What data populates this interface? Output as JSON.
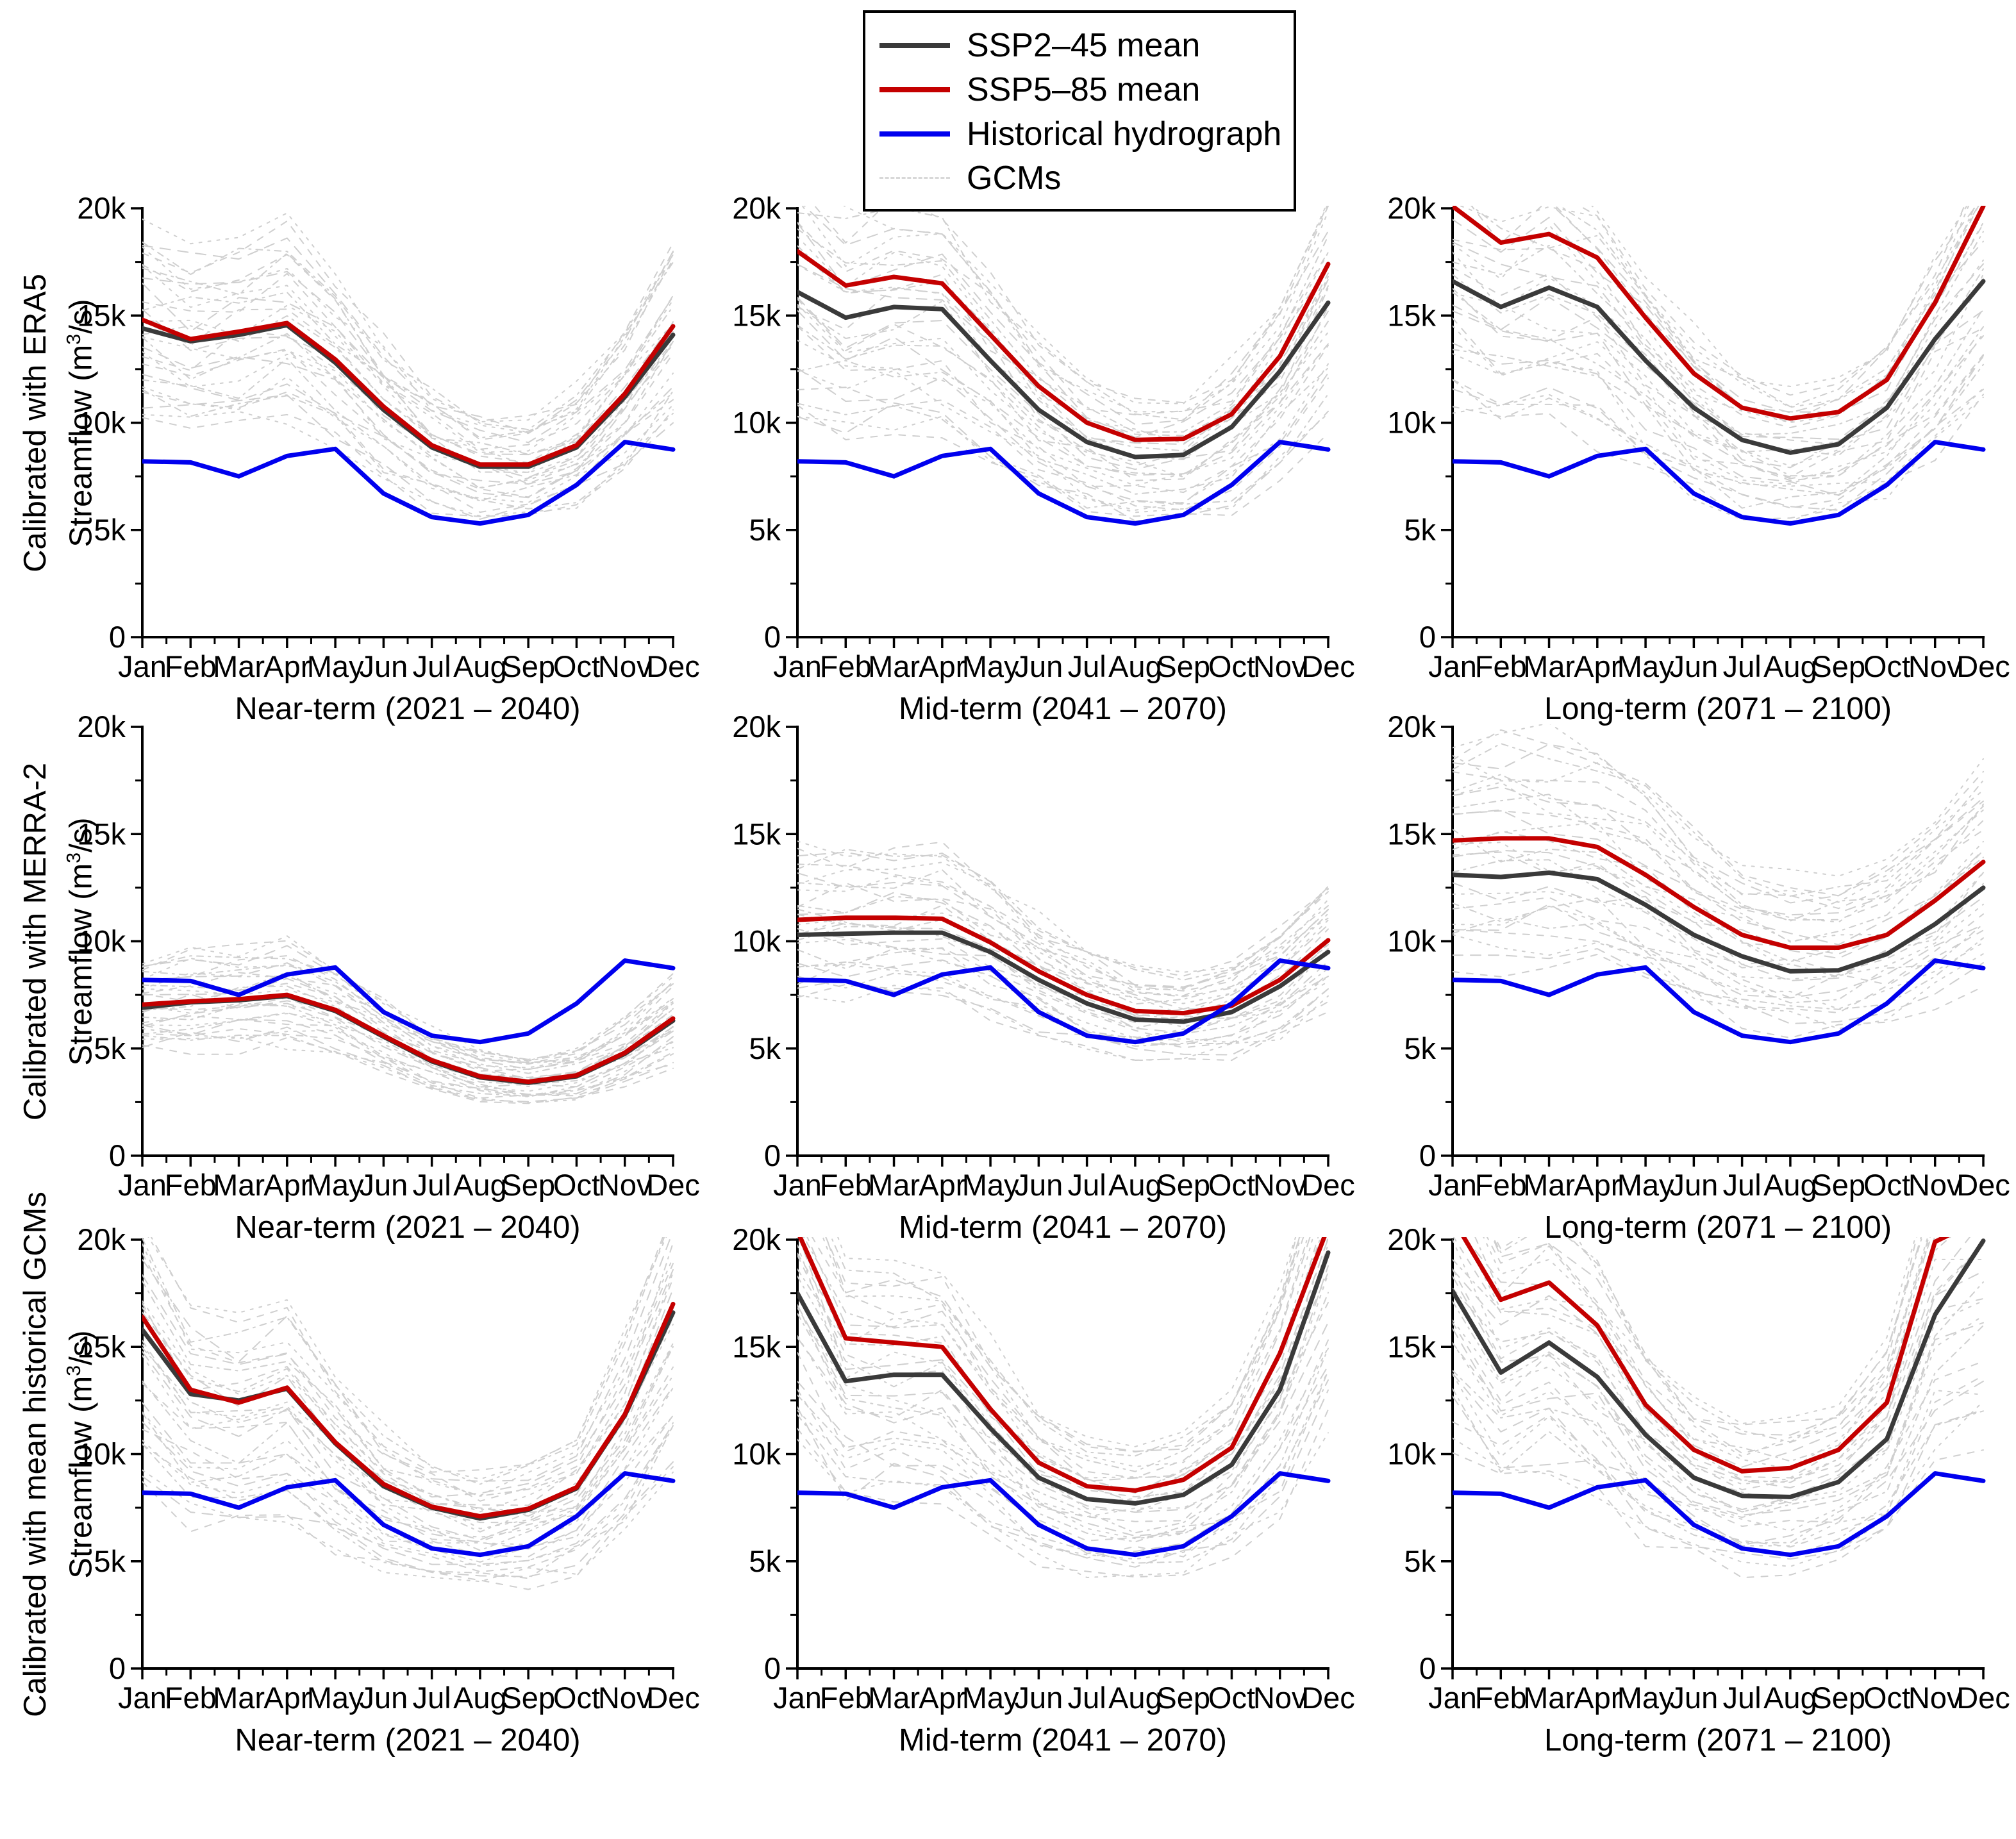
{
  "legend": {
    "items": [
      {
        "label": "SSP2–45 mean",
        "color": "#3a3a3a",
        "dash": "solid"
      },
      {
        "label": "SSP5–85 mean",
        "color": "#c40000",
        "dash": "solid"
      },
      {
        "label": "Historical hydrograph",
        "color": "#0000ee",
        "dash": "solid"
      },
      {
        "label": "GCMs",
        "color": "#d8d8d8",
        "dash": "dashed"
      }
    ]
  },
  "axes": {
    "months": [
      "Jan",
      "Feb",
      "Mar",
      "Apr",
      "May",
      "Jun",
      "Jul",
      "Aug",
      "Sep",
      "Oct",
      "Nov",
      "Dec"
    ],
    "ytick_labels": [
      "0",
      "5k",
      "10k",
      "15k",
      "20k"
    ],
    "ytick_values": [
      0,
      5000,
      10000,
      15000,
      20000
    ],
    "yminor_values": [
      2500,
      7500,
      12500,
      17500
    ],
    "ylim": [
      0,
      20000
    ],
    "ylabel_line2": "Streamflow (m³/s)"
  },
  "row_labels": [
    "Calibrated with ERA5",
    "Calibrated with MERRA-2",
    "Calibrated with mean historical GCMs"
  ],
  "col_titles": [
    "Near-term (2021 – 2040)",
    "Mid-term (2041 – 2070)",
    "Long-term (2071 – 2100)"
  ],
  "colors": {
    "ssp245": "#3a3a3a",
    "ssp585": "#c40000",
    "historical": "#0000ee",
    "gcm": "#cfcfcf",
    "axis": "#000000"
  },
  "chart_data": [
    {
      "type": "line",
      "row": 0,
      "col": 0,
      "row_label": "Calibrated with ERA5",
      "title": "Near-term (2021 – 2040)",
      "ylim": [
        0,
        20000
      ],
      "series": [
        {
          "name": "SSP2–45 mean",
          "values": [
            14400,
            13800,
            14100,
            14550,
            12800,
            10600,
            8850,
            7950,
            7950,
            8850,
            11200,
            14100
          ]
        },
        {
          "name": "SSP5–85 mean",
          "values": [
            14800,
            13900,
            14250,
            14650,
            12950,
            10750,
            8950,
            8050,
            8050,
            8950,
            11350,
            14500
          ]
        },
        {
          "name": "Historical hydrograph",
          "values": [
            8200,
            8150,
            7500,
            8450,
            8780,
            6700,
            5600,
            5300,
            5700,
            7100,
            9100,
            8750
          ]
        }
      ],
      "gcm_envelope": {
        "low": 0.7,
        "high": 1.3,
        "count": 30,
        "seed": 11
      }
    },
    {
      "type": "line",
      "row": 0,
      "col": 1,
      "row_label": "Calibrated with ERA5",
      "title": "Mid-term (2041 – 2070)",
      "ylim": [
        0,
        20000
      ],
      "series": [
        {
          "name": "SSP2–45 mean",
          "values": [
            16100,
            14900,
            15400,
            15300,
            12900,
            10600,
            9100,
            8400,
            8500,
            9800,
            12400,
            15600
          ]
        },
        {
          "name": "SSP5–85 mean",
          "values": [
            18000,
            16400,
            16800,
            16500,
            14100,
            11700,
            10000,
            9200,
            9250,
            10400,
            13100,
            17400
          ]
        },
        {
          "name": "Historical hydrograph",
          "values": [
            8200,
            8150,
            7500,
            8450,
            8780,
            6700,
            5600,
            5300,
            5700,
            7100,
            9100,
            8750
          ]
        }
      ],
      "gcm_envelope": {
        "low": 0.62,
        "high": 1.24,
        "count": 30,
        "seed": 22
      }
    },
    {
      "type": "line",
      "row": 0,
      "col": 2,
      "row_label": "Calibrated with ERA5",
      "title": "Long-term (2071 – 2100)",
      "ylim": [
        0,
        20000
      ],
      "series": [
        {
          "name": "SSP2–45 mean",
          "values": [
            16600,
            15400,
            16300,
            15400,
            12900,
            10700,
            9200,
            8600,
            9000,
            10700,
            13900,
            16600
          ]
        },
        {
          "name": "SSP5–85 mean",
          "values": [
            20100,
            18400,
            18800,
            17700,
            14900,
            12300,
            10700,
            10200,
            10500,
            12000,
            15600,
            20100
          ]
        },
        {
          "name": "Historical hydrograph",
          "values": [
            8200,
            8150,
            7500,
            8450,
            8780,
            6700,
            5600,
            5300,
            5700,
            7100,
            9100,
            8750
          ]
        }
      ],
      "gcm_envelope": {
        "low": 0.58,
        "high": 1.22,
        "count": 30,
        "seed": 33
      }
    },
    {
      "type": "line",
      "row": 1,
      "col": 0,
      "row_label": "Calibrated with MERRA-2",
      "title": "Near-term (2021 – 2040)",
      "ylim": [
        0,
        20000
      ],
      "series": [
        {
          "name": "SSP2–45 mean",
          "values": [
            6900,
            7150,
            7250,
            7450,
            6750,
            5550,
            4400,
            3650,
            3400,
            3700,
            4750,
            6300
          ]
        },
        {
          "name": "SSP5–85 mean",
          "values": [
            7050,
            7200,
            7300,
            7500,
            6800,
            5600,
            4450,
            3700,
            3450,
            3750,
            4800,
            6400
          ]
        },
        {
          "name": "Historical hydrograph",
          "values": [
            8200,
            8150,
            7500,
            8450,
            8780,
            6700,
            5600,
            5300,
            5700,
            7100,
            9100,
            8750
          ]
        }
      ],
      "gcm_envelope": {
        "low": 0.7,
        "high": 1.32,
        "count": 30,
        "seed": 44
      }
    },
    {
      "type": "line",
      "row": 1,
      "col": 1,
      "row_label": "Calibrated with MERRA-2",
      "title": "Mid-term (2041 – 2070)",
      "ylim": [
        0,
        20000
      ],
      "series": [
        {
          "name": "SSP2–45 mean",
          "values": [
            10300,
            10350,
            10400,
            10400,
            9500,
            8200,
            7100,
            6350,
            6250,
            6700,
            7900,
            9500
          ]
        },
        {
          "name": "SSP5–85 mean",
          "values": [
            11000,
            11100,
            11100,
            11050,
            9950,
            8600,
            7500,
            6750,
            6650,
            7000,
            8200,
            10050
          ]
        },
        {
          "name": "Historical hydrograph",
          "values": [
            8200,
            8150,
            7500,
            8450,
            8780,
            6700,
            5600,
            5300,
            5700,
            7100,
            9100,
            8750
          ]
        }
      ],
      "gcm_envelope": {
        "low": 0.7,
        "high": 1.33,
        "count": 30,
        "seed": 55
      }
    },
    {
      "type": "line",
      "row": 1,
      "col": 2,
      "row_label": "Calibrated with MERRA-2",
      "title": "Long-term (2071 – 2100)",
      "ylim": [
        0,
        20000
      ],
      "series": [
        {
          "name": "SSP2–45 mean",
          "values": [
            13100,
            13000,
            13200,
            12900,
            11700,
            10300,
            9300,
            8600,
            8650,
            9400,
            10800,
            12500
          ]
        },
        {
          "name": "SSP5–85 mean",
          "values": [
            14700,
            14800,
            14800,
            14400,
            13100,
            11600,
            10300,
            9700,
            9700,
            10300,
            11900,
            13700
          ]
        },
        {
          "name": "Historical hydrograph",
          "values": [
            8200,
            8150,
            7500,
            8450,
            8780,
            6700,
            5600,
            5300,
            5700,
            7100,
            9100,
            8750
          ]
        }
      ],
      "gcm_envelope": {
        "low": 0.66,
        "high": 1.4,
        "count": 30,
        "seed": 66
      }
    },
    {
      "type": "line",
      "row": 2,
      "col": 0,
      "row_label": "Calibrated with mean historical GCMs",
      "title": "Near-term (2021 – 2040)",
      "ylim": [
        0,
        20000
      ],
      "series": [
        {
          "name": "SSP2–45 mean",
          "values": [
            15800,
            12800,
            12500,
            13050,
            10500,
            8500,
            7500,
            7000,
            7400,
            8400,
            11800,
            16600
          ]
        },
        {
          "name": "SSP5–85 mean",
          "values": [
            16400,
            13000,
            12400,
            13100,
            10550,
            8600,
            7550,
            7100,
            7450,
            8450,
            11850,
            17000
          ]
        },
        {
          "name": "Historical hydrograph",
          "values": [
            8200,
            8150,
            7500,
            8450,
            8780,
            6700,
            5600,
            5300,
            5700,
            7100,
            9100,
            8750
          ]
        }
      ],
      "gcm_envelope": {
        "low": 0.55,
        "high": 1.28,
        "count": 30,
        "seed": 77
      }
    },
    {
      "type": "line",
      "row": 2,
      "col": 1,
      "row_label": "Calibrated with mean historical GCMs",
      "title": "Mid-term (2041 – 2070)",
      "ylim": [
        0,
        20000
      ],
      "series": [
        {
          "name": "SSP2–45 mean",
          "values": [
            17500,
            13400,
            13700,
            13700,
            11200,
            8900,
            7900,
            7700,
            8100,
            9500,
            13000,
            19400
          ]
        },
        {
          "name": "SSP5–85 mean",
          "values": [
            20400,
            15400,
            15200,
            15000,
            12100,
            9600,
            8500,
            8300,
            8800,
            10300,
            14700,
            20600
          ]
        },
        {
          "name": "Historical hydrograph",
          "values": [
            8200,
            8150,
            7500,
            8450,
            8780,
            6700,
            5600,
            5300,
            5700,
            7100,
            9100,
            8750
          ]
        }
      ],
      "gcm_envelope": {
        "low": 0.55,
        "high": 1.3,
        "count": 30,
        "seed": 88
      }
    },
    {
      "type": "line",
      "row": 2,
      "col": 2,
      "row_label": "Calibrated with mean historical GCMs",
      "title": "Long-term (2071 – 2100)",
      "ylim": [
        0,
        20000
      ],
      "series": [
        {
          "name": "SSP2–45 mean",
          "values": [
            17600,
            13800,
            15200,
            13600,
            10900,
            8900,
            8050,
            8000,
            8700,
            10700,
            16500,
            19950
          ]
        },
        {
          "name": "SSP5–85 mean",
          "values": [
            21000,
            17200,
            18000,
            16000,
            12300,
            10200,
            9200,
            9350,
            10200,
            12400,
            19900,
            21000
          ]
        },
        {
          "name": "Historical hydrograph",
          "values": [
            8200,
            8150,
            7500,
            8450,
            8780,
            6700,
            5600,
            5300,
            5700,
            7100,
            9100,
            8750
          ]
        }
      ],
      "gcm_envelope": {
        "low": 0.55,
        "high": 1.3,
        "count": 30,
        "seed": 99
      }
    }
  ]
}
